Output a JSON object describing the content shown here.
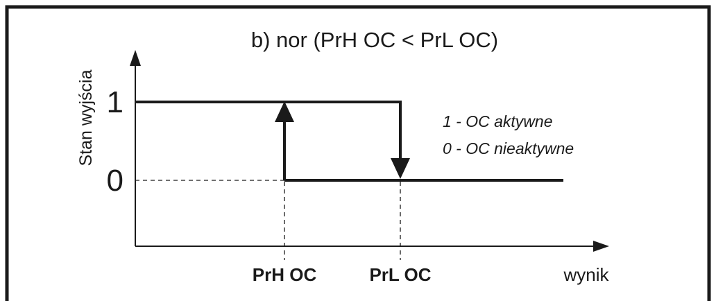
{
  "title": "b) nor (PrH OC < PrL OC)",
  "y_axis_label": "Stan wyjścia",
  "y_levels": [
    "1",
    "0"
  ],
  "x_markers": [
    "PrH OC",
    "PrL OC"
  ],
  "x_axis_label": "wynik",
  "legend": [
    "1 - OC aktywne",
    "0 - OC nieaktywne"
  ]
}
